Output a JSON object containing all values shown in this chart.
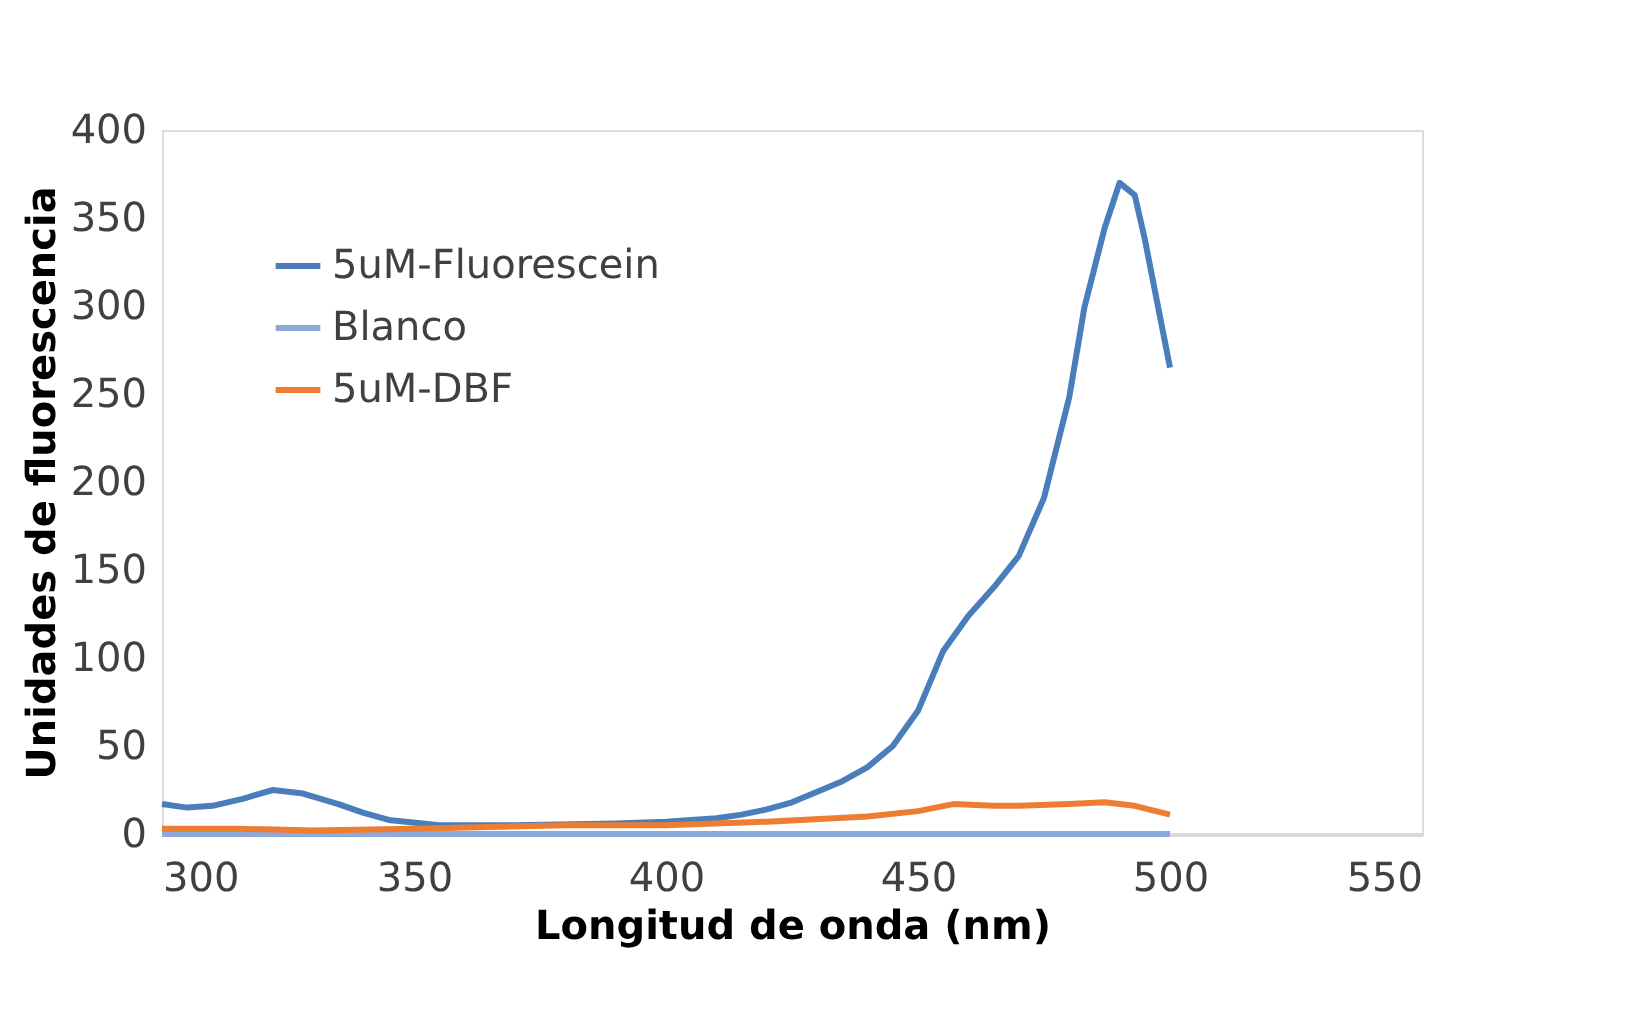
{
  "chart_data": {
    "type": "line",
    "xlabel": "Longitud de onda (nm)",
    "ylabel": "Unidades de fluorescencia",
    "xlim": [
      300,
      550
    ],
    "xticks": [
      300,
      350,
      400,
      450,
      500,
      550
    ],
    "ylim": [
      0,
      400
    ],
    "yticks": [
      0,
      50,
      100,
      150,
      200,
      250,
      300,
      350,
      400
    ],
    "grid": false,
    "legend": "top left",
    "marker": "none",
    "line_style": "solid",
    "series": [
      {
        "name": "5uM-Fluorescein",
        "color": "#4a7ebb",
        "x": [
          300,
          305,
          310,
          316,
          322,
          328,
          335,
          340,
          345,
          355,
          370,
          390,
          400,
          410,
          415,
          420,
          425,
          430,
          435,
          440,
          445,
          450,
          455,
          460,
          465,
          470,
          475,
          480,
          483,
          487,
          490,
          493,
          495,
          500
        ],
        "values": [
          17,
          15,
          16,
          20,
          25,
          23,
          17,
          12,
          8,
          5,
          5,
          6,
          7,
          9,
          11,
          14,
          18,
          24,
          30,
          38,
          50,
          70,
          104,
          124,
          140,
          158,
          191,
          248,
          299,
          344,
          370,
          363,
          338,
          265
        ]
      },
      {
        "name": "Blanco",
        "color": "#8ea9db",
        "x": [
          300,
          350,
          400,
          450,
          500
        ],
        "values": [
          0,
          0,
          0,
          0,
          0
        ]
      },
      {
        "name": "5uM-DBF",
        "color": "#ed7d31",
        "x": [
          300,
          315,
          330,
          350,
          380,
          400,
          420,
          440,
          450,
          457,
          465,
          470,
          480,
          487,
          493,
          500
        ],
        "values": [
          3,
          3,
          2,
          3,
          5,
          5,
          7,
          10,
          13,
          17,
          16,
          16,
          17,
          18,
          16,
          11
        ]
      }
    ]
  }
}
